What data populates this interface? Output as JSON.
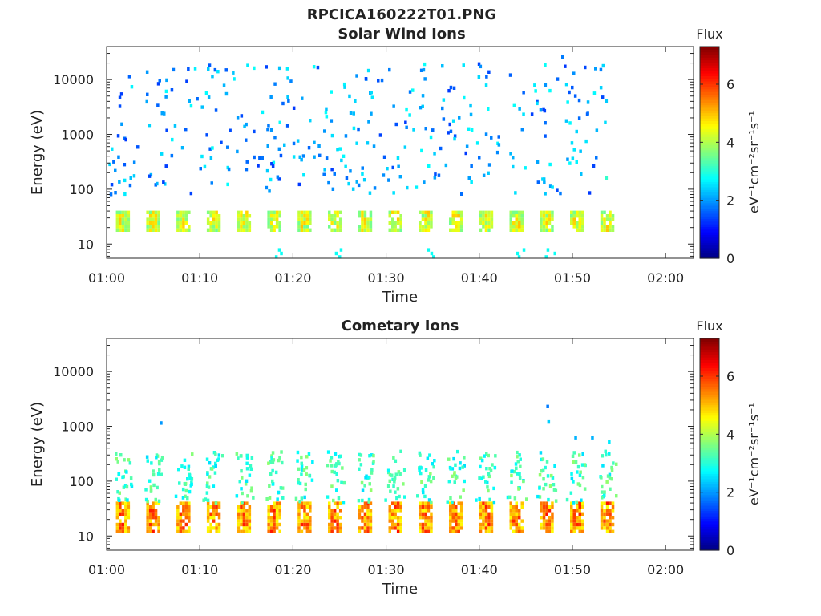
{
  "figure_title": "RPCICA160222T01.PNG",
  "colorbar_label": "Flux",
  "colorbar_unit": "eV⁻¹cm⁻²sr⁻¹s⁻¹",
  "colorbar_ticks": [
    "0",
    "2",
    "4",
    "6"
  ],
  "chart_data": [
    {
      "type": "heatmap",
      "title": "Solar Wind Ions",
      "xlabel": "Time",
      "ylabel": "Energy (eV)",
      "x_tick_labels": [
        "01:00",
        "01:10",
        "01:20",
        "01:30",
        "01:40",
        "01:50",
        "02:00"
      ],
      "x_range": [
        "01:00",
        "02:03"
      ],
      "y_tick_labels": [
        "10",
        "100",
        "1000",
        "10000"
      ],
      "y_scale": "log",
      "y_range": [
        5.5,
        40000
      ],
      "colorbar": {
        "label": "Flux",
        "range": [
          0,
          7.3
        ],
        "colormap": "jet"
      },
      "data_end_time": "01:54",
      "bursts": {
        "period_min": 3.25,
        "first_min": 1.0,
        "energy_range_eV": [
          18,
          38
        ],
        "flux": [
          3.5,
          5.0
        ]
      },
      "scatter_energy_eV": [
        80,
        20000
      ],
      "scatter_flux": [
        1.3,
        2.8
      ],
      "cells": [
        {
          "t": 6.3,
          "e": 9750,
          "f": 2.1
        },
        {
          "t": 11.5,
          "e": 15000,
          "f": 1.6
        },
        {
          "t": 17.0,
          "e": 17000,
          "f": 1.4
        },
        {
          "t": 29.0,
          "e": 9600,
          "f": 1.5
        },
        {
          "t": 48.8,
          "e": 26000,
          "f": 1.8
        },
        {
          "t": 51.5,
          "e": 2400,
          "f": 1.7
        },
        {
          "t": 53.5,
          "e": 160,
          "f": 3.1
        }
      ]
    },
    {
      "type": "heatmap",
      "title": "Cometary Ions",
      "xlabel": "Time",
      "ylabel": "Energy (eV)",
      "x_tick_labels": [
        "01:00",
        "01:10",
        "01:20",
        "01:30",
        "01:40",
        "01:50",
        "02:00"
      ],
      "x_range": [
        "01:00",
        "02:03"
      ],
      "y_tick_labels": [
        "10",
        "100",
        "1000",
        "10000"
      ],
      "y_scale": "log",
      "y_range": [
        5.5,
        40000
      ],
      "colorbar": {
        "label": "Flux",
        "range": [
          0,
          7.3
        ],
        "colormap": "jet"
      },
      "data_end_time": "01:54",
      "bursts": {
        "period_min": 3.25,
        "first_min": 1.0,
        "energy_range_eV": [
          12,
          40
        ],
        "flux": [
          4.5,
          6.3
        ]
      },
      "plumes": {
        "energy_range_eV": [
          60,
          350
        ],
        "flux": [
          2.5,
          3.8
        ]
      },
      "cells": [
        {
          "t": 5.7,
          "e": 1150,
          "f": 2.0
        },
        {
          "t": 47.2,
          "e": 2300,
          "f": 1.8
        },
        {
          "t": 47.3,
          "e": 1200,
          "f": 2.4
        },
        {
          "t": 50.2,
          "e": 620,
          "f": 2.2
        },
        {
          "t": 52.0,
          "e": 620,
          "f": 2.2
        },
        {
          "t": 53.8,
          "e": 520,
          "f": 2.6
        }
      ]
    }
  ]
}
